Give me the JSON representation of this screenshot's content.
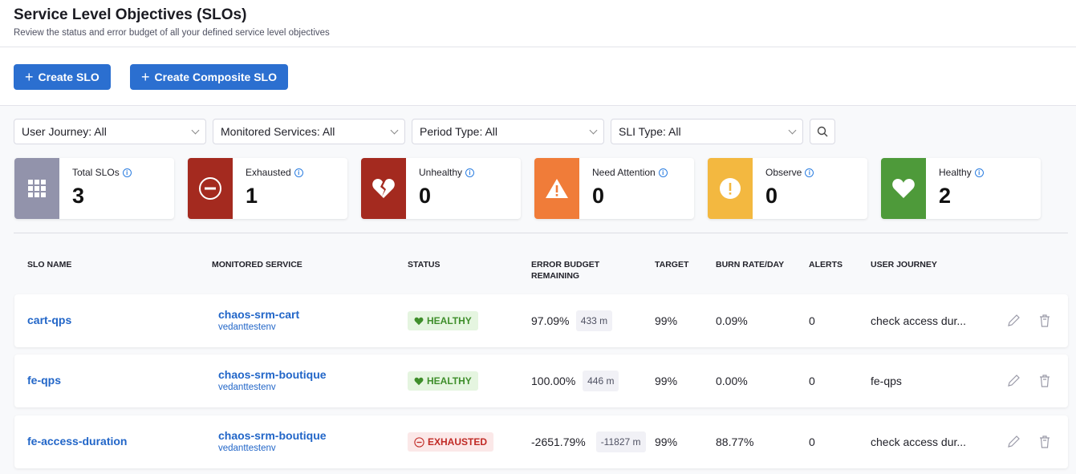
{
  "header": {
    "title": "Service Level Objectives (SLOs)",
    "subtitle": "Review the status and error budget of all your defined service level objectives"
  },
  "actions": {
    "create_slo": "Create SLO",
    "create_composite": "Create Composite SLO"
  },
  "filters": [
    "User Journey: All",
    "Monitored Services: All",
    "Period Type: All",
    "SLI Type: All"
  ],
  "cards": [
    {
      "label": "Total SLOs",
      "value": "3",
      "color": "#9293ab",
      "icon": "grid-icon"
    },
    {
      "label": "Exhausted",
      "value": "1",
      "color": "#a42a1f",
      "icon": "minus-circle-icon"
    },
    {
      "label": "Unhealthy",
      "value": "0",
      "color": "#a42a1f",
      "icon": "broken-heart-icon"
    },
    {
      "label": "Need Attention",
      "value": "0",
      "color": "#f07c39",
      "icon": "warning-icon"
    },
    {
      "label": "Observe",
      "value": "0",
      "color": "#f3b840",
      "icon": "exclamation-circle-icon"
    },
    {
      "label": "Healthy",
      "value": "2",
      "color": "#4e9a3a",
      "icon": "heart-icon"
    }
  ],
  "table": {
    "columns": [
      "SLO NAME",
      "MONITORED SERVICE",
      "STATUS",
      "ERROR BUDGET REMAINING",
      "TARGET",
      "BURN RATE/DAY",
      "ALERTS",
      "USER JOURNEY"
    ],
    "rows": [
      {
        "name": "cart-qps",
        "service": "chaos-srm-cart",
        "env": "vedanttestenv",
        "status": "HEALTHY",
        "budget": "97.09%",
        "minutes": "433 m",
        "target": "99%",
        "burn": "0.09%",
        "alerts": "0",
        "journey": "check access dur..."
      },
      {
        "name": "fe-qps",
        "service": "chaos-srm-boutique",
        "env": "vedanttestenv",
        "status": "HEALTHY",
        "budget": "100.00%",
        "minutes": "446 m",
        "target": "99%",
        "burn": "0.00%",
        "alerts": "0",
        "journey": "fe-qps"
      },
      {
        "name": "fe-access-duration",
        "service": "chaos-srm-boutique",
        "env": "vedanttestenv",
        "status": "EXHAUSTED",
        "budget": "-2651.79%",
        "minutes": "-11827 m",
        "target": "99%",
        "burn": "88.77%",
        "alerts": "0",
        "journey": "check access dur..."
      }
    ]
  }
}
